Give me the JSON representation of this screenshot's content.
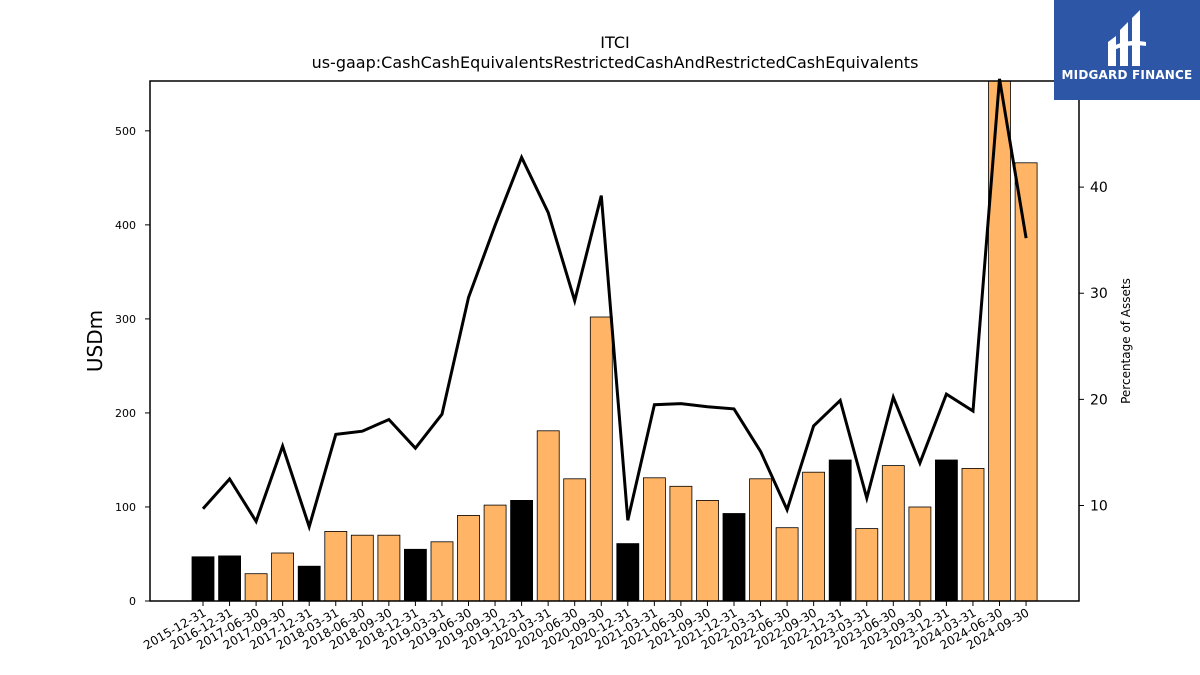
{
  "brand": {
    "name": "MIDGARD FINANCE",
    "background": "#2d56a6"
  },
  "chart_data": {
    "type": "bar",
    "title": "ITCI",
    "subtitle": "us-gaap:CashCashEquivalentsRestrictedCashAndRestrictedCashEquivalents",
    "ylabel": "USDm",
    "ylabel_right": "Percentage of Assets",
    "ylim": [
      0,
      553
    ],
    "ylim_right": [
      1,
      50
    ],
    "yticks": [
      0,
      100,
      200,
      300,
      400,
      500
    ],
    "yticks_right": [
      10,
      20,
      30,
      40
    ],
    "grid": false,
    "colors": {
      "annual": "#000000",
      "quarterly": "#ffb466",
      "line": "#000000"
    },
    "categories": [
      "2015-12-31",
      "2016-12-31",
      "2017-06-30",
      "2017-09-30",
      "2017-12-31",
      "2018-03-31",
      "2018-06-30",
      "2018-09-30",
      "2018-12-31",
      "2019-03-31",
      "2019-06-30",
      "2019-09-30",
      "2019-12-31",
      "2020-03-31",
      "2020-06-30",
      "2020-09-30",
      "2020-12-31",
      "2021-03-31",
      "2021-06-30",
      "2021-09-30",
      "2021-12-31",
      "2022-03-31",
      "2022-06-30",
      "2022-09-30",
      "2022-12-31",
      "2023-03-31",
      "2023-06-30",
      "2023-09-30",
      "2023-12-31",
      "2024-03-31",
      "2024-06-30",
      "2024-09-30"
    ],
    "series": [
      {
        "values": [
          47,
          48,
          29,
          51,
          37,
          74,
          70,
          70,
          55,
          63,
          91,
          102,
          107,
          181,
          130,
          302,
          61,
          131,
          122,
          107,
          93,
          130,
          78,
          137,
          150,
          77,
          144,
          100,
          150,
          141,
          553,
          466
        ],
        "period_type": [
          "annual",
          "annual",
          "quarterly",
          "quarterly",
          "annual",
          "quarterly",
          "quarterly",
          "quarterly",
          "annual",
          "quarterly",
          "quarterly",
          "quarterly",
          "annual",
          "quarterly",
          "quarterly",
          "quarterly",
          "annual",
          "quarterly",
          "quarterly",
          "quarterly",
          "annual",
          "quarterly",
          "quarterly",
          "quarterly",
          "annual",
          "quarterly",
          "quarterly",
          "quarterly",
          "annual",
          "quarterly",
          "quarterly",
          "quarterly"
        ]
      },
      {
        "axis": "right",
        "values": [
          9.7,
          12.5,
          8.5,
          15.6,
          8.0,
          16.7,
          17.0,
          18.1,
          15.4,
          18.6,
          29.6,
          36.4,
          42.8,
          37.6,
          29.3,
          39.2,
          8.6,
          19.5,
          19.6,
          19.3,
          19.1,
          15.1,
          9.6,
          17.5,
          19.9,
          10.7,
          20.2,
          14.0,
          20.5,
          18.9,
          50.2,
          35.2
        ]
      }
    ]
  }
}
